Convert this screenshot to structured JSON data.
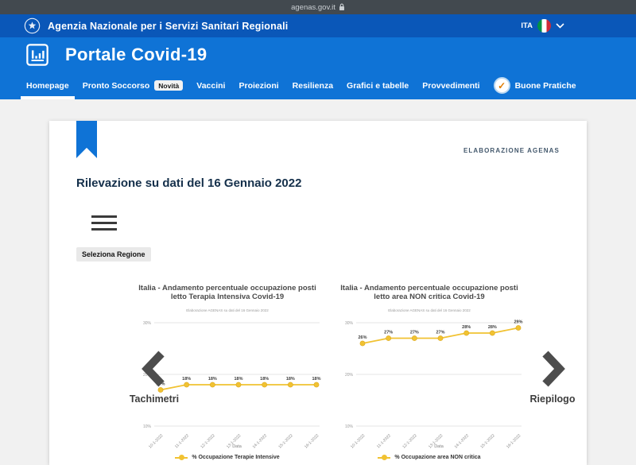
{
  "topbar": {
    "url": "agenas.gov.it"
  },
  "header": {
    "agency_name": "Agenzia Nazionale per i Servizi Sanitari Regionali",
    "language": "ITA",
    "portal_title": "Portale Covid-19"
  },
  "nav": {
    "items": [
      {
        "label": "Homepage",
        "active": true
      },
      {
        "label": "Pronto Soccorso",
        "badge": "Novità"
      },
      {
        "label": "Vaccini"
      },
      {
        "label": "Proiezioni"
      },
      {
        "label": "Resilienza"
      },
      {
        "label": "Grafici e tabelle"
      },
      {
        "label": "Provvedimenti"
      },
      {
        "label": "Buone Pratiche",
        "icon": "check-circle"
      }
    ]
  },
  "main": {
    "elaborazione": "ELABORAZIONE AGENAS",
    "heading": "Rilevazione su dati del 16 Gennaio 2022",
    "seleziona_regione": "Seleziona Regione",
    "pager_prev": "Tachimetri",
    "pager_next": "Riepilogo"
  },
  "colors": {
    "slim_header_blue": "#0a57b8",
    "primary_blue": "#0f73d6",
    "chart_yellow": "#f1c232",
    "topbar_gray": "#42494f"
  },
  "chart_data": [
    {
      "type": "line",
      "title": "Italia - Andamento percentuale occupazione posti letto Terapia Intensiva Covid-19",
      "subtitle": "Elaborazione AGENAS su dati del 16 Gennaio 2022",
      "x": [
        "10-1-2022",
        "11-1-2022",
        "12-1-2022",
        "13-1-2022",
        "14-1-2022",
        "15-1-2022",
        "16-1-2022"
      ],
      "values": [
        17,
        18,
        18,
        18,
        18,
        18,
        18
      ],
      "data_labels": [
        "17%",
        "18%",
        "18%",
        "18%",
        "18%",
        "18%",
        "18%"
      ],
      "xlabel": "Data",
      "ylim": [
        10,
        30
      ],
      "yticks": [
        30,
        20,
        10
      ],
      "ytick_labels": [
        "30%",
        "20%",
        "10%"
      ],
      "grid": true,
      "legend": "% Occupazione Terapie Intensive",
      "legend_position": "bottom",
      "line_color": "#f1c232"
    },
    {
      "type": "line",
      "title": "Italia - Andamento percentuale occupazione posti letto area NON critica Covid-19",
      "subtitle": "Elaborazione AGENAS su dati del 16 Gennaio 2022",
      "x": [
        "10-1-2022",
        "11-1-2022",
        "12-1-2022",
        "13-1-2022",
        "14-1-2022",
        "15-1-2022",
        "16-1-2022"
      ],
      "values": [
        26,
        27,
        27,
        27,
        28,
        28,
        29
      ],
      "data_labels": [
        "26%",
        "27%",
        "27%",
        "27%",
        "28%",
        "28%",
        "29%"
      ],
      "xlabel": "Data",
      "ylim": [
        10,
        30
      ],
      "yticks": [
        30,
        20,
        10
      ],
      "ytick_labels": [
        "30%",
        "20%",
        "10%"
      ],
      "grid": true,
      "legend": "% Occupazione area NON critica",
      "legend_position": "bottom",
      "line_color": "#f1c232"
    }
  ]
}
